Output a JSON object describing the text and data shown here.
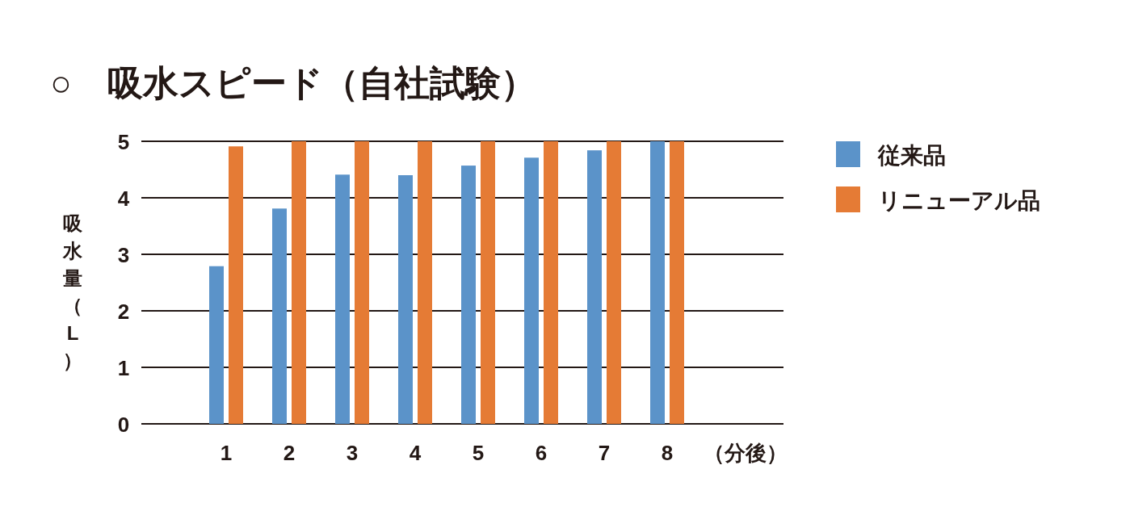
{
  "chart_data": {
    "type": "bar",
    "title": "○　吸水スピード（自社試験）",
    "xlabel": "（分後）",
    "ylabel": "吸水量（L）",
    "categories": [
      "1",
      "2",
      "3",
      "4",
      "5",
      "6",
      "7",
      "8"
    ],
    "series": [
      {
        "name": "従来品",
        "color": "#5b93c9",
        "values": [
          2.79,
          3.81,
          4.41,
          4.4,
          4.57,
          4.71,
          4.84,
          5
        ]
      },
      {
        "name": "リニューアル品",
        "color": "#e57b35",
        "values": [
          4.91,
          5,
          5,
          5,
          5,
          5,
          5,
          5
        ]
      }
    ],
    "ylim": [
      0,
      5
    ],
    "yticks": [
      0,
      1,
      2,
      3,
      4,
      5
    ],
    "grid": "y",
    "legend": "right"
  }
}
